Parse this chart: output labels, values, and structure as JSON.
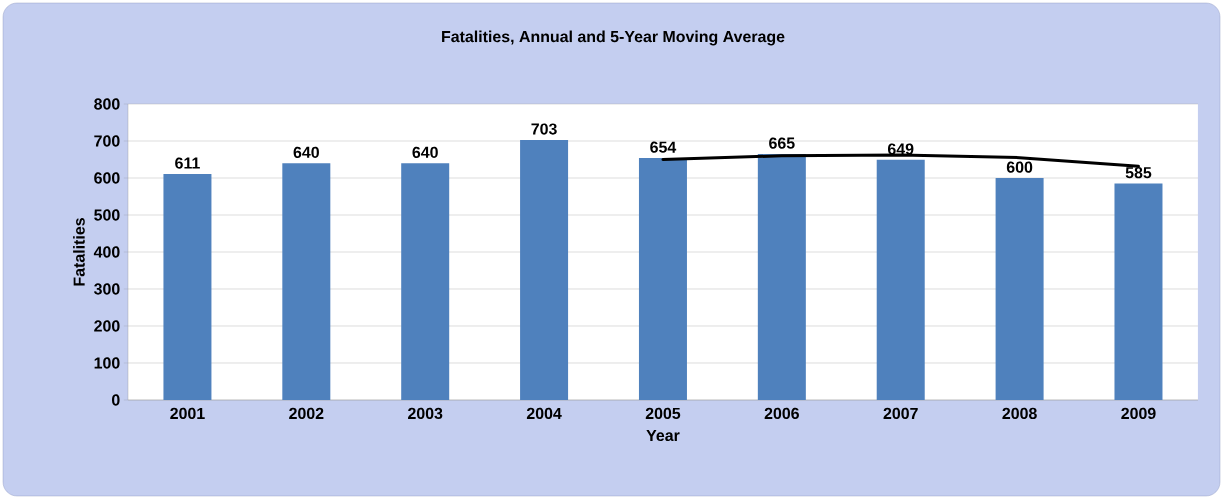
{
  "chart_data": {
    "type": "bar",
    "title": "Fatalities, Annual and 5-Year Moving Average",
    "xlabel": "Year",
    "ylabel": "Fatalities",
    "categories": [
      "2001",
      "2002",
      "2003",
      "2004",
      "2005",
      "2006",
      "2007",
      "2008",
      "2009"
    ],
    "series": [
      {
        "color": "#4f81bd",
        "values": [
          611,
          640,
          640,
          703,
          654,
          665,
          649,
          600,
          585
        ],
        "value_labels": [
          "611",
          "640",
          "640",
          "703",
          "654",
          "665",
          "649",
          "600",
          "585"
        ]
      },
      {
        "type": "line",
        "color": "#000000",
        "values": [
          null,
          null,
          null,
          null,
          650,
          660,
          662,
          655,
          632
        ]
      }
    ],
    "ylim": [
      0,
      800
    ],
    "yticks": [
      0,
      100,
      200,
      300,
      400,
      500,
      600,
      700,
      800
    ],
    "grid": "y",
    "line_style": "solid",
    "marker": "none"
  }
}
